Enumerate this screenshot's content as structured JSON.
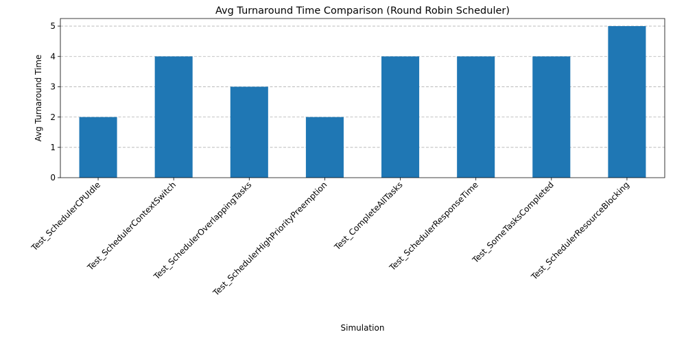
{
  "chart_data": {
    "type": "bar",
    "title": "Avg Turnaround Time Comparison (Round Robin Scheduler)",
    "xlabel": "Simulation",
    "ylabel": "Avg Turnaround Time",
    "categories": [
      "Test_SchedulerCPUIdle",
      "Test_SchedulerContextSwitch",
      "Test_SchedulerOverlappingTasks",
      "Test_SchedulerHighPriorityPreemption",
      "Test_CompleteAllTasks",
      "Test_SchedulerResponseTime",
      "Test_SomeTasksCompleted",
      "Test_SchedulerResourceBlocking"
    ],
    "values": [
      2,
      4,
      3,
      2,
      4,
      4,
      4,
      5
    ],
    "ylim": [
      0,
      5.25
    ],
    "yticks": [
      0,
      1,
      2,
      3,
      4,
      5
    ],
    "grid": "y-dashed",
    "bar_color": "#1f77b4"
  }
}
